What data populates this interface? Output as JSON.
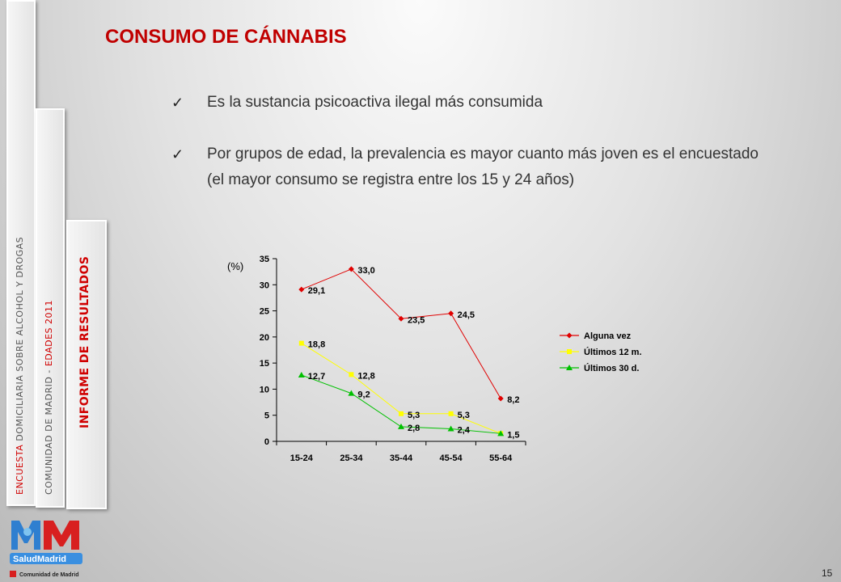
{
  "side": {
    "tab1": {
      "part1": "ENCUESTA",
      "part2": " DOMICILIARIA  SOBRE  ALCOHOL  Y  DROGAS"
    },
    "tab2": {
      "part1": "COMUNIDAD  DE  MADRID  -  ",
      "part2": "EDADES  2011"
    },
    "tab3": {
      "label": "INFORME  DE  RESULTADOS"
    }
  },
  "slide": {
    "title": "CONSUMO DE CÁNNABIS",
    "bullets": [
      "Es la sustancia psicoactiva ilegal más consumida",
      "Por grupos de edad, la prevalencia es mayor cuanto más joven es el encuestado (el mayor consumo se registra entre los 15 y 24 años)"
    ],
    "check_icon": "✓",
    "page_number": "15"
  },
  "logo": {
    "brand": "SaludMadrid",
    "org": "Comunidad de Madrid"
  },
  "colors": {
    "title": "#c00000",
    "alguna": "#e00000",
    "ultimos12": "#ffff00",
    "ultimos30": "#00c000"
  },
  "chart_data": {
    "type": "line",
    "title": "",
    "ylabel": "(%)",
    "xlabel": "",
    "categories": [
      "15-24",
      "25-34",
      "35-44",
      "45-54",
      "55-64"
    ],
    "ylim": [
      0,
      35
    ],
    "yticks": [
      0,
      5,
      10,
      15,
      20,
      25,
      30,
      35
    ],
    "grid": false,
    "legend_position": "right",
    "series": [
      {
        "name": "Alguna vez",
        "color": "#e00000",
        "marker": "diamond",
        "values": [
          29.1,
          33.0,
          23.5,
          24.5,
          8.2
        ],
        "labels": [
          "29,1",
          "33,0",
          "23,5",
          "24,5",
          "8,2"
        ]
      },
      {
        "name": "Últimos 12 m.",
        "color": "#ffff00",
        "marker": "square",
        "values": [
          18.8,
          12.8,
          5.3,
          5.3,
          1.5
        ],
        "labels": [
          "18,8",
          "12,8",
          "5,3",
          "5,3",
          ""
        ]
      },
      {
        "name": "Últimos 30 d.",
        "color": "#00c000",
        "marker": "triangle",
        "values": [
          12.7,
          9.2,
          2.8,
          2.4,
          1.5
        ],
        "labels": [
          "12,7",
          "9,2",
          "2,8",
          "2,4",
          "1,5"
        ]
      }
    ]
  }
}
